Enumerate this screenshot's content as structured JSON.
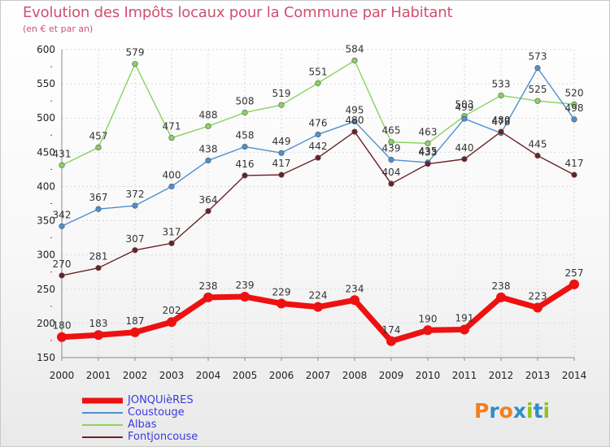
{
  "header": {
    "title": "Evolution des Impôts locaux pour la Commune par Habitant",
    "subtitle": "(en € et par an)"
  },
  "brand": {
    "logo_text": "Proxiti",
    "letter_colors": [
      "#f07f1e",
      "#2d8ec9",
      "#f07f1e",
      "#2d8ec9",
      "#96c11f",
      "#2d8ec9",
      "#96c11f"
    ]
  },
  "chart_data": {
    "type": "line",
    "title": "Evolution des Impôts locaux pour la Commune par Habitant",
    "subtitle": "(en € et par an)",
    "xlabel": "",
    "ylabel": "",
    "x": [
      "2000",
      "2001",
      "2002",
      "2003",
      "2004",
      "2005",
      "2006",
      "2007",
      "2008",
      "2009",
      "2010",
      "2011",
      "2012",
      "2013",
      "2014"
    ],
    "ylim": [
      150,
      600
    ],
    "yticks": [
      150,
      200,
      250,
      300,
      350,
      400,
      450,
      500,
      550,
      600
    ],
    "grid": true,
    "legend_position": "bottom-left",
    "series": [
      {
        "name": "JONQUièRES",
        "color": "#ee1111",
        "values": [
          180,
          183,
          187,
          202,
          238,
          239,
          229,
          224,
          234,
          174,
          190,
          191,
          238,
          223,
          257
        ]
      },
      {
        "name": "Coustouge",
        "color": "#4f8fce",
        "values": [
          342,
          367,
          372,
          400,
          438,
          458,
          449,
          476,
          495,
          439,
          435,
          499,
          478,
          573,
          498
        ]
      },
      {
        "name": "Albas",
        "color": "#88d35f",
        "values": [
          431,
          457,
          579,
          471,
          488,
          508,
          519,
          551,
          584,
          465,
          463,
          503,
          533,
          525,
          520
        ]
      },
      {
        "name": "Fontjoncouse",
        "color": "#6b2226",
        "values": [
          270,
          281,
          307,
          317,
          364,
          416,
          417,
          442,
          480,
          404,
          433,
          440,
          480,
          445,
          417
        ]
      }
    ]
  }
}
